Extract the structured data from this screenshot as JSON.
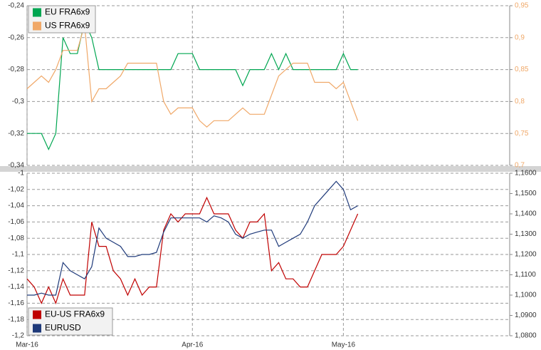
{
  "chart_data": [
    {
      "type": "line",
      "ylim": [
        -0.34,
        -0.24
      ],
      "yticks": [
        {
          "value": -0.24,
          "label": "-0,24"
        },
        {
          "value": -0.26,
          "label": "-0,26"
        },
        {
          "value": -0.28,
          "label": "-0,28"
        },
        {
          "value": -0.3,
          "label": "-0,3"
        },
        {
          "value": -0.32,
          "label": "-0,32"
        },
        {
          "value": -0.34,
          "label": "-0,34"
        }
      ],
      "y2lim": [
        0.7,
        0.95
      ],
      "y2ticks": [
        {
          "value": 0.95,
          "label": "0,95"
        },
        {
          "value": 0.9,
          "label": "0,9"
        },
        {
          "value": 0.85,
          "label": "0,85"
        },
        {
          "value": 0.8,
          "label": "0,8"
        },
        {
          "value": 0.75,
          "label": "0,75"
        },
        {
          "value": 0.7,
          "label": "0,7"
        }
      ],
      "grid": true,
      "legend": "upper left",
      "series": [
        {
          "name": "EU FRA6x9",
          "color": "#00a651",
          "values": [
            -0.32,
            -0.32,
            -0.32,
            -0.33,
            -0.32,
            -0.26,
            -0.27,
            -0.27,
            -0.25,
            -0.26,
            -0.28,
            -0.28,
            -0.28,
            -0.28,
            -0.28,
            -0.28,
            -0.28,
            -0.28,
            -0.28,
            -0.28,
            -0.28,
            -0.27,
            -0.27,
            -0.27,
            -0.28,
            -0.28,
            -0.28,
            -0.28,
            -0.28,
            -0.28,
            -0.29,
            -0.28,
            -0.28,
            -0.28,
            -0.27,
            -0.28,
            -0.27,
            -0.28,
            -0.28,
            -0.28,
            -0.28,
            -0.28,
            -0.28,
            -0.28,
            -0.27,
            -0.28,
            -0.28
          ]
        },
        {
          "name": "US FRA6x9",
          "color": "#f0a868",
          "axis": "y2",
          "values": [
            0.82,
            0.83,
            0.84,
            0.83,
            0.85,
            0.88,
            0.88,
            0.88,
            0.92,
            0.8,
            0.82,
            0.82,
            0.83,
            0.84,
            0.86,
            0.86,
            0.86,
            0.86,
            0.86,
            0.8,
            0.78,
            0.79,
            0.79,
            0.79,
            0.77,
            0.76,
            0.77,
            0.77,
            0.77,
            0.78,
            0.79,
            0.78,
            0.78,
            0.78,
            0.81,
            0.84,
            0.85,
            0.86,
            0.86,
            0.86,
            0.83,
            0.83,
            0.83,
            0.82,
            0.83,
            0.8,
            0.77
          ]
        }
      ]
    },
    {
      "type": "line",
      "categories": [
        "Mar-16",
        null,
        null,
        null,
        null,
        null,
        null,
        null,
        null,
        null,
        null,
        null,
        null,
        null,
        null,
        null,
        null,
        null,
        null,
        null,
        null,
        null,
        null,
        "Apr-16",
        null,
        null,
        null,
        null,
        null,
        null,
        null,
        null,
        null,
        null,
        null,
        null,
        null,
        null,
        null,
        null,
        null,
        null,
        null,
        null,
        "May-16",
        null,
        null
      ],
      "ylim": [
        -1.2,
        -1
      ],
      "yticks": [
        -1,
        {
          "value": -1.02,
          "label": "-1,02"
        },
        {
          "value": -1.04,
          "label": "-1,04"
        },
        {
          "value": -1.06,
          "label": "-1,06"
        },
        {
          "value": -1.08,
          "label": "-1,08"
        },
        {
          "value": -1.1,
          "label": "-1,1"
        },
        {
          "value": -1.12,
          "label": "-1,12"
        },
        {
          "value": -1.14,
          "label": "-1,14"
        },
        {
          "value": -1.16,
          "label": "-1,16"
        },
        {
          "value": -1.18,
          "label": "-1,18"
        },
        {
          "value": -1.2,
          "label": "-1,2"
        }
      ],
      "y2lim": [
        1.08,
        1.16
      ],
      "y2ticks": [
        {
          "value": 1.16,
          "label": "1,1600"
        },
        {
          "value": 1.15,
          "label": "1,1500"
        },
        {
          "value": 1.14,
          "label": "1,1400"
        },
        {
          "value": 1.13,
          "label": "1,1300"
        },
        {
          "value": 1.12,
          "label": "1,1200"
        },
        {
          "value": 1.11,
          "label": "1,1100"
        },
        {
          "value": 1.1,
          "label": "1,1000"
        },
        {
          "value": 1.09,
          "label": "1,0900"
        },
        {
          "value": 1.08,
          "label": "1,0800"
        }
      ],
      "grid": true,
      "legend": "lower left",
      "series": [
        {
          "name": "EU-US FRA6x9",
          "color": "#c00000",
          "values": [
            -1.13,
            -1.14,
            -1.16,
            -1.14,
            -1.16,
            -1.13,
            -1.15,
            -1.15,
            -1.15,
            -1.06,
            -1.09,
            -1.09,
            -1.12,
            -1.13,
            -1.15,
            -1.13,
            -1.15,
            -1.14,
            -1.14,
            -1.07,
            -1.05,
            -1.06,
            -1.05,
            -1.05,
            -1.05,
            -1.03,
            -1.05,
            -1.05,
            -1.05,
            -1.07,
            -1.08,
            -1.06,
            -1.06,
            -1.05,
            -1.12,
            -1.11,
            -1.13,
            -1.13,
            -1.14,
            -1.14,
            -1.12,
            -1.1,
            -1.1,
            -1.1,
            -1.09,
            -1.07,
            -1.05
          ]
        },
        {
          "name": "EURUSD",
          "color": "#1f3a7a",
          "axis": "y2",
          "values": [
            1.1,
            1.1,
            1.101,
            1.1,
            1.1,
            1.116,
            1.112,
            1.11,
            1.108,
            1.114,
            1.133,
            1.128,
            1.126,
            1.124,
            1.119,
            1.119,
            1.12,
            1.12,
            1.121,
            1.131,
            1.138,
            1.138,
            1.138,
            1.138,
            1.138,
            1.136,
            1.139,
            1.138,
            1.136,
            1.13,
            1.128,
            1.13,
            1.131,
            1.132,
            1.132,
            1.124,
            1.126,
            1.128,
            1.13,
            1.136,
            1.144,
            1.148,
            1.152,
            1.156,
            1.152,
            1.142,
            1.144
          ]
        }
      ]
    }
  ]
}
